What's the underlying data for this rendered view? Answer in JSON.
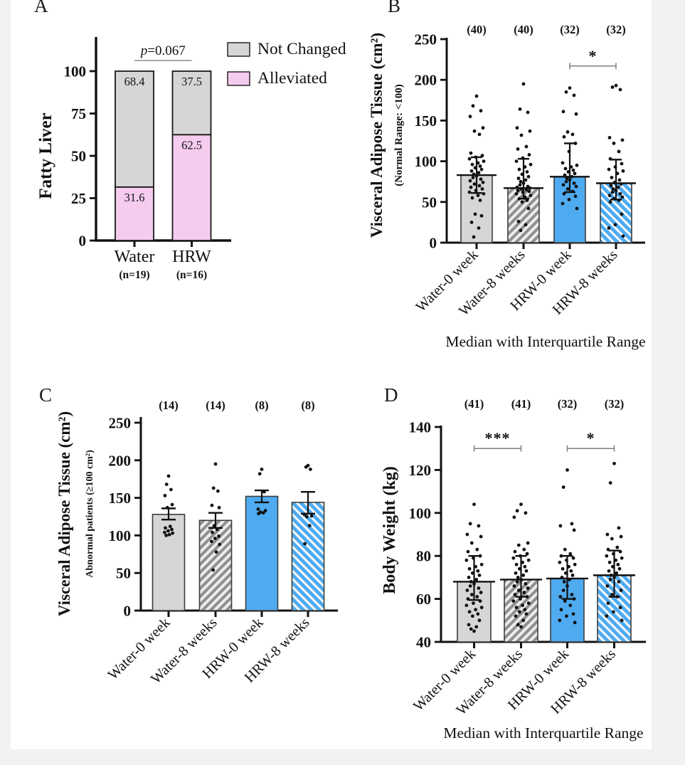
{
  "colors": {
    "page_bg": "#f2f2f3",
    "canvas_bg": "#ffffff",
    "axis": "#111111",
    "bar_gray": "#d6d6d6",
    "bar_gray_hatch_bg": "#ececec",
    "bar_gray_hatch_stripe": "#8f8f8f",
    "bar_blue": "#4fabf0",
    "bar_blue_hatch_stripe": "#ffffff",
    "bar_pink": "#f5cbee",
    "bar_edge": "#3d3d3d",
    "point": "#101010",
    "bracket": "#7f7f7f",
    "sig_line_a": "#8a8a8a",
    "text": "#111111"
  },
  "chart_data": [
    {
      "panel": "A",
      "type": "stacked-bar",
      "ylabel": "Fatty Liver",
      "ylim": [
        0,
        100
      ],
      "yticks": [
        0,
        25,
        50,
        75,
        100
      ],
      "categories": [
        "Water",
        "HRW"
      ],
      "category_sublabels": [
        "(n=19)",
        "(n=16)"
      ],
      "series": [
        {
          "name": "Alleviated",
          "color_key": "bar_pink",
          "values": [
            31.6,
            62.5
          ]
        },
        {
          "name": "Not Changed",
          "color_key": "bar_gray",
          "values": [
            68.4,
            37.5
          ]
        }
      ],
      "segment_labels": {
        "not_changed": [
          "68.4",
          "37.5"
        ],
        "alleviated": [
          "31.6",
          "62.5"
        ]
      },
      "legend": [
        {
          "label": "Not Changed",
          "color_key": "bar_gray"
        },
        {
          "label": "Alleviated",
          "color_key": "bar_pink"
        }
      ],
      "significance": {
        "italic_prefix": "p",
        "rest": "=0.067",
        "label": "p=0.067"
      }
    },
    {
      "panel": "B",
      "type": "bar-scatter",
      "ylabel": "Visceral Adipose Tissue (cm²)",
      "ylabel_sub": "(Normal Range: <100)",
      "ylim": [
        0,
        250
      ],
      "yticks": [
        0,
        50,
        100,
        150,
        200,
        250
      ],
      "error_type": "median-iqr",
      "caption": "Median with Interquartile Range",
      "categories": [
        "Water-0 week",
        "Water-8 weeks",
        "HRW-0 week",
        "HRW-8 weeks"
      ],
      "n_labels": [
        "(40)",
        "(40)",
        "(32)",
        "(32)"
      ],
      "bars": [
        {
          "style": "gray-solid",
          "center": 83,
          "low": 61,
          "high": 105,
          "points": [
            180,
            168,
            162,
            155,
            141,
            137,
            133,
            110,
            107,
            105,
            103,
            100,
            98,
            96,
            94,
            92,
            90,
            88,
            86,
            84,
            82,
            80,
            78,
            76,
            74,
            72,
            70,
            68,
            66,
            64,
            62,
            60,
            58,
            55,
            52,
            35,
            33,
            25,
            18,
            7
          ]
        },
        {
          "style": "gray-hatch",
          "center": 67,
          "low": 54,
          "high": 103,
          "points": [
            195,
            164,
            160,
            141,
            137,
            132,
            118,
            115,
            108,
            104,
            100,
            96,
            93,
            90,
            87,
            84,
            81,
            79,
            77,
            75,
            73,
            71,
            69,
            68,
            67,
            66,
            65,
            64,
            63,
            62,
            60,
            58,
            56,
            54,
            52,
            50,
            42,
            26,
            22,
            15
          ]
        },
        {
          "style": "blue-solid",
          "center": 81,
          "low": 62,
          "high": 122,
          "points": [
            190,
            185,
            181,
            161,
            158,
            136,
            133,
            130,
            122,
            112,
            98,
            95,
            93,
            91,
            89,
            87,
            85,
            83,
            81,
            79,
            77,
            75,
            73,
            71,
            69,
            66,
            63,
            60,
            57,
            53,
            48,
            42
          ]
        },
        {
          "style": "blue-hatch",
          "center": 73,
          "low": 53,
          "high": 102,
          "points": [
            193,
            191,
            188,
            129,
            126,
            122,
            112,
            103,
            97,
            93,
            90,
            88,
            85,
            80,
            77,
            74,
            72,
            70,
            68,
            66,
            64,
            62,
            60,
            58,
            56,
            54,
            52,
            50,
            35,
            22,
            18,
            8
          ]
        }
      ],
      "significance": [
        {
          "from": 2,
          "to": 3,
          "label": "*",
          "at": 217
        }
      ]
    },
    {
      "panel": "C",
      "type": "bar-scatter",
      "ylabel": "Visceral Adipose Tissue (cm²)",
      "ylabel_sub": "Abnormal patients (≥100 cm²)",
      "ylim": [
        0,
        250
      ],
      "yticks": [
        0,
        50,
        100,
        150,
        200,
        250
      ],
      "error_type": "mean-sem",
      "caption": "",
      "categories": [
        "Water-0 week",
        "Water-8 weeks",
        "HRW-0 week",
        "HRW-8 weeks"
      ],
      "n_labels": [
        "(14)",
        "(14)",
        "(8)",
        "(8)"
      ],
      "bars": [
        {
          "style": "gray-solid",
          "center": 128,
          "low": 121,
          "high": 136,
          "points": [
            179,
            168,
            161,
            153,
            141,
            137,
            112,
            110,
            108,
            106,
            104,
            103,
            101,
            100
          ]
        },
        {
          "style": "gray-hatch",
          "center": 120,
          "low": 110,
          "high": 130,
          "points": [
            195,
            163,
            159,
            140,
            137,
            113,
            108,
            104,
            99,
            96,
            92,
            88,
            78,
            54
          ]
        },
        {
          "style": "blue-solid",
          "center": 152,
          "low": 144,
          "high": 160,
          "points": [
            188,
            182,
            158,
            135,
            133,
            131,
            130,
            129
          ]
        },
        {
          "style": "blue-hatch",
          "center": 144,
          "low": 129,
          "high": 158,
          "points": [
            193,
            191,
            188,
            128,
            126,
            125,
            113,
            89
          ]
        }
      ],
      "significance": []
    },
    {
      "panel": "D",
      "type": "bar-scatter",
      "ylabel": "Body Weight (kg)",
      "ylabel_sub": "",
      "ylim": [
        40,
        140
      ],
      "yticks": [
        40,
        60,
        80,
        100,
        120,
        140
      ],
      "error_type": "median-iqr",
      "caption": "Median with Interquartile Range",
      "categories": [
        "Water-0 week",
        "Water-8 weeks",
        "HRW-0 week",
        "HRW-8 weeks"
      ],
      "n_labels": [
        "(41)",
        "(41)",
        "(32)",
        "(32)"
      ],
      "bars": [
        {
          "style": "gray-solid",
          "center": 68,
          "low": 59.5,
          "high": 80,
          "points": [
            104,
            95,
            94,
            90,
            89,
            86,
            83,
            82,
            80,
            79,
            78,
            76,
            75,
            74,
            73,
            72,
            71,
            70,
            69,
            68,
            67,
            66,
            65,
            64,
            63,
            62,
            61,
            60,
            59,
            58,
            57,
            56,
            55,
            54,
            53,
            52,
            50,
            48,
            47,
            46,
            45
          ]
        },
        {
          "style": "gray-hatch",
          "center": 69,
          "low": 61,
          "high": 80,
          "points": [
            104,
            101,
            100,
            98,
            86,
            85,
            83,
            82,
            81,
            80,
            79,
            78,
            77,
            76,
            75,
            74,
            73,
            72,
            71,
            70,
            69,
            68,
            67,
            66,
            65,
            64,
            63,
            62,
            61,
            60,
            59,
            58,
            57,
            56,
            55,
            54,
            53,
            52,
            50,
            48,
            47
          ]
        },
        {
          "style": "blue-solid",
          "center": 69.5,
          "low": 60,
          "high": 80,
          "points": [
            120,
            112,
            95,
            94,
            92,
            83,
            81,
            80,
            79,
            78,
            77,
            76,
            75,
            74,
            73,
            72,
            71,
            70,
            69,
            68,
            66,
            64,
            62,
            61,
            60,
            59,
            57,
            55,
            53,
            52,
            50,
            49
          ]
        },
        {
          "style": "blue-hatch",
          "center": 71,
          "low": 61,
          "high": 82.5,
          "points": [
            123,
            114,
            93,
            90,
            89,
            88,
            84,
            83,
            82,
            81,
            80,
            79,
            78,
            77,
            76,
            75,
            74,
            73,
            72,
            71,
            70,
            69,
            68,
            66,
            64,
            62,
            61,
            58,
            56,
            54,
            52,
            50
          ]
        }
      ],
      "significance": [
        {
          "from": 0,
          "to": 1,
          "label": "***",
          "at": 130
        },
        {
          "from": 2,
          "to": 3,
          "label": "*",
          "at": 130
        }
      ]
    }
  ]
}
